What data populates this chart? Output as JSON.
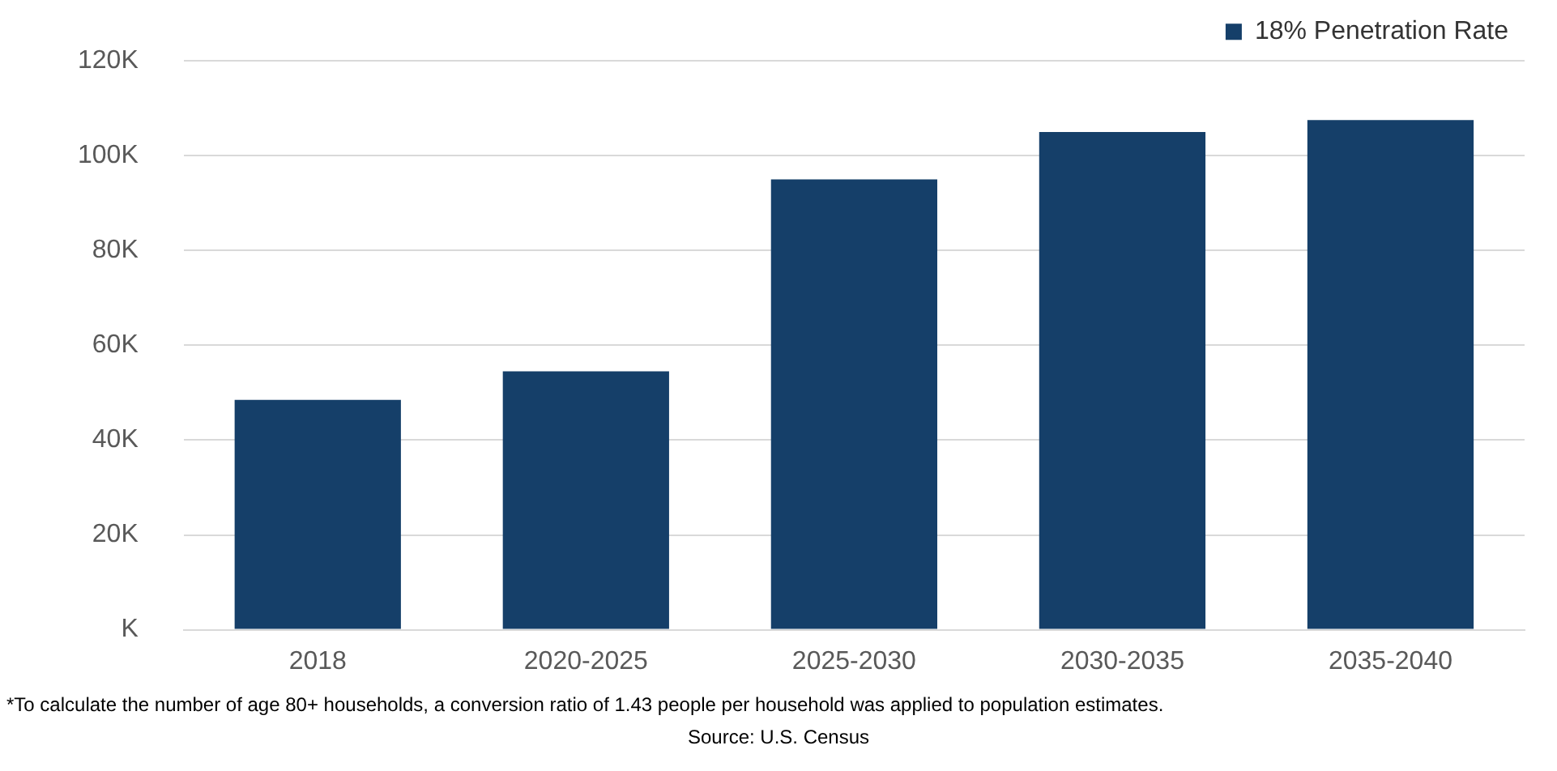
{
  "chart_data": {
    "type": "bar",
    "categories": [
      "2018",
      "2020-2025",
      "2025-2030",
      "2030-2035",
      "2035-2040"
    ],
    "series": [
      {
        "name": "18% Penetration Rate",
        "color": "#153f69",
        "values": [
          48500,
          54500,
          95000,
          105000,
          107500
        ]
      }
    ],
    "ylim": [
      0,
      120000
    ],
    "yticks": [
      {
        "value": 0,
        "label": "K"
      },
      {
        "value": 20000,
        "label": "20K"
      },
      {
        "value": 40000,
        "label": "40K"
      },
      {
        "value": 60000,
        "label": "60K"
      },
      {
        "value": 80000,
        "label": "80K"
      },
      {
        "value": 100000,
        "label": "100K"
      },
      {
        "value": 120000,
        "label": "120K"
      }
    ],
    "grid": "y",
    "legend": "top right",
    "annotations": [
      "*To calculate the number of age 80+ households, a conversion ratio of 1.43 people per household was applied to population estimates.",
      "Source: U.S. Census"
    ]
  }
}
